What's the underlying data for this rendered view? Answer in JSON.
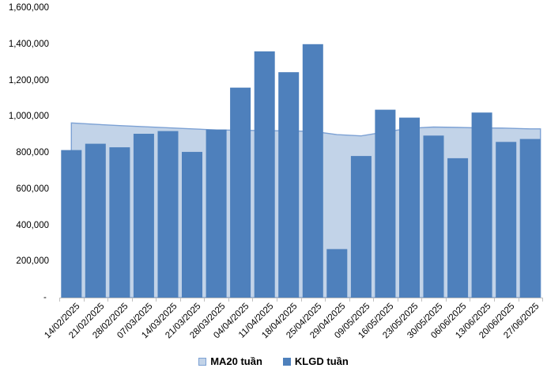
{
  "chart_data": {
    "type": "bar",
    "title": "",
    "xlabel": "",
    "ylabel": "",
    "categories": [
      "14/02/2025",
      "21/02/2025",
      "28/02/2025",
      "07/03/2025",
      "14/03/2025",
      "21/03/2025",
      "28/03/2025",
      "04/04/2025",
      "11/04/2025",
      "18/04/2025",
      "25/04/2025",
      "29/04/2025",
      "09/05/2025",
      "16/05/2025",
      "23/05/2025",
      "30/05/2025",
      "06/06/2025",
      "13/06/2025",
      "20/06/2025",
      "27/06/2025"
    ],
    "series": [
      {
        "name": "MA20 tuần",
        "type": "area",
        "values": [
          965000,
          957000,
          950000,
          944000,
          938000,
          932000,
          926000,
          924000,
          922000,
          921000,
          918000,
          900000,
          893000,
          915000,
          935000,
          942000,
          940000,
          937000,
          936000,
          932000
        ],
        "fill": "#C2D3E8",
        "line": "#7CA1D4"
      },
      {
        "name": "KLGD tuần",
        "type": "bar",
        "values": [
          815000,
          850000,
          830000,
          905000,
          920000,
          805000,
          928000,
          1160000,
          1360000,
          1245000,
          1400000,
          268000,
          782000,
          1038000,
          994000,
          895000,
          770000,
          1022000,
          860000,
          876000
        ],
        "fill": "#4E80BC"
      }
    ],
    "ylim": [
      0,
      1600000
    ],
    "ytick_step": 200000,
    "ytick_labels_top_to_bottom": [
      "1,600,000",
      "1,400,000",
      "1,200,000",
      "1,000,000",
      "800,000",
      "600,000",
      "400,000",
      "200,000",
      "- "
    ],
    "grid": false,
    "legend_position": "bottom",
    "axis_color": "#BFBFBF",
    "text_color": "#000000",
    "background": "#FFFFFF"
  }
}
